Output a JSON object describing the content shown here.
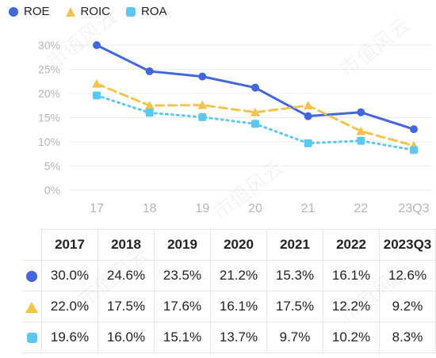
{
  "legend": [
    {
      "label": "ROE",
      "color": "#4466dd",
      "marker": "circle"
    },
    {
      "label": "ROIC",
      "color": "#f2c44e",
      "marker": "triangle"
    },
    {
      "label": "ROA",
      "color": "#5cc8ef",
      "marker": "square"
    }
  ],
  "chart_data": {
    "type": "line",
    "x": [
      "17",
      "18",
      "19",
      "20",
      "21",
      "22",
      "23Q3"
    ],
    "yticks": [
      "0%",
      "5%",
      "10%",
      "15%",
      "20%",
      "25%",
      "30%"
    ],
    "ylim": [
      0,
      30
    ],
    "grid": true,
    "legend_position": "top-left",
    "series": [
      {
        "name": "ROE",
        "color": "#4466dd",
        "style": "solid",
        "marker": "circle",
        "values": [
          30.0,
          24.6,
          23.5,
          21.2,
          15.3,
          16.1,
          12.6
        ]
      },
      {
        "name": "ROIC",
        "color": "#f2c44e",
        "style": "dashed",
        "marker": "triangle",
        "values": [
          22.0,
          17.5,
          17.6,
          16.1,
          17.5,
          12.2,
          9.2
        ]
      },
      {
        "name": "ROA",
        "color": "#5cc8ef",
        "style": "dotted",
        "marker": "square",
        "values": [
          19.6,
          16.0,
          15.1,
          13.7,
          9.7,
          10.2,
          8.3
        ]
      }
    ]
  },
  "table": {
    "headers": [
      "2017",
      "2018",
      "2019",
      "2020",
      "2021",
      "2022",
      "2023Q3"
    ],
    "rows": [
      {
        "marker": "circle",
        "color": "#4466dd",
        "cells": [
          "30.0%",
          "24.6%",
          "23.5%",
          "21.2%",
          "15.3%",
          "16.1%",
          "12.6%"
        ]
      },
      {
        "marker": "triangle",
        "color": "#f2c44e",
        "cells": [
          "22.0%",
          "17.5%",
          "17.6%",
          "16.1%",
          "17.5%",
          "12.2%",
          "9.2%"
        ]
      },
      {
        "marker": "square",
        "color": "#5cc8ef",
        "cells": [
          "19.6%",
          "16.0%",
          "15.1%",
          "13.7%",
          "9.7%",
          "10.2%",
          "8.3%"
        ]
      }
    ]
  },
  "watermark_text": "市值风云"
}
